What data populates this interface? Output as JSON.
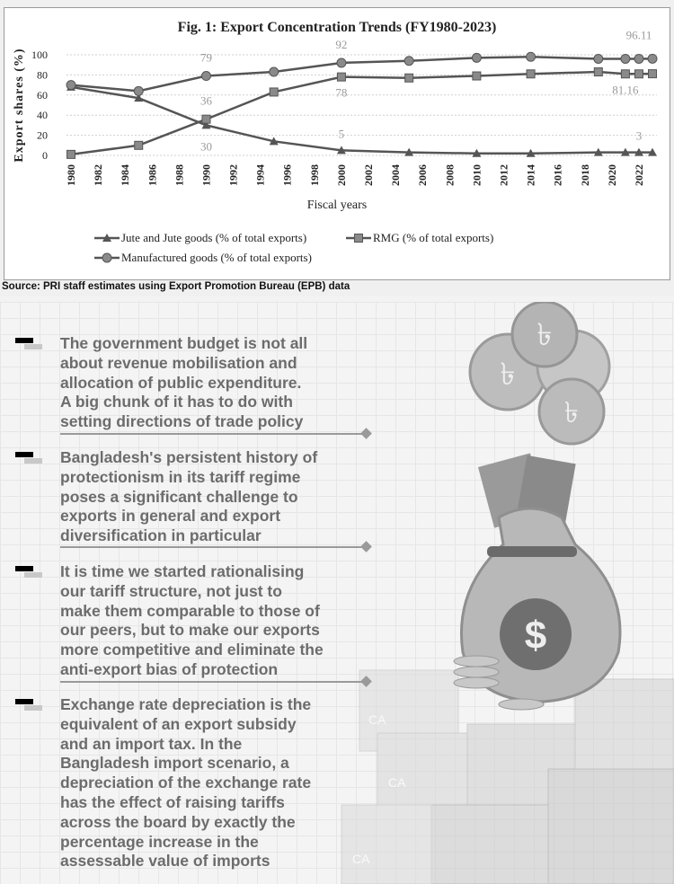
{
  "chart_data": {
    "type": "line",
    "title": "Fig. 1: Export Concentration Trends (FY1980-2023)",
    "xlabel": "Fiscal years",
    "ylabel": "Export shares (%)",
    "ylim": [
      0,
      100
    ],
    "xlim": [
      1980,
      2023
    ],
    "yticks": [
      "0",
      "20",
      "40",
      "60",
      "80",
      "100"
    ],
    "xticks": [
      "1980",
      "1982",
      "1984",
      "1986",
      "1988",
      "1990",
      "1992",
      "1994",
      "1996",
      "1998",
      "2000",
      "2002",
      "2004",
      "2006",
      "2008",
      "2010",
      "2012",
      "2014",
      "2016",
      "2018",
      "2020",
      "2022"
    ],
    "grid": true,
    "legend_position": "bottom",
    "x": [
      1980,
      1985,
      1990,
      1995,
      2000,
      2005,
      2010,
      2014,
      2019,
      2021,
      2022,
      2023
    ],
    "series": [
      {
        "name": "Jute and Jute goods (% of total exports)",
        "marker": "triangle",
        "values": [
          68,
          57,
          30,
          14,
          5,
          3,
          2,
          2,
          3,
          3,
          3,
          3
        ]
      },
      {
        "name": "RMG (% of total exports)",
        "marker": "square",
        "values": [
          1,
          10,
          36,
          63,
          78,
          77,
          79,
          81,
          83,
          81,
          81,
          81.16
        ]
      },
      {
        "name": "Manufactured goods (% of total exports)",
        "marker": "circle",
        "values": [
          70,
          64,
          79,
          83,
          92,
          94,
          97,
          98,
          96,
          96,
          96,
          96.11
        ]
      }
    ],
    "annotations": [
      {
        "series": 2,
        "x": 1990,
        "text": "79"
      },
      {
        "series": 1,
        "x": 1990,
        "text": "36"
      },
      {
        "series": 0,
        "x": 1990,
        "text": "30"
      },
      {
        "series": 2,
        "x": 2000,
        "text": "92"
      },
      {
        "series": 1,
        "x": 2000,
        "text": "78"
      },
      {
        "series": 0,
        "x": 2000,
        "text": "5"
      },
      {
        "series": 2,
        "x": 2022,
        "text": "96.11"
      },
      {
        "series": 1,
        "x": 2021,
        "text": "81.16"
      },
      {
        "series": 0,
        "x": 2022,
        "text": "3"
      }
    ]
  },
  "source": "Source: PRI staff estimates using Export Promotion Bureau (EPB) data",
  "bullets": [
    {
      "text": "The government budget is not all\nabout revenue mobilisation and\nallocation of public expenditure.\nA big chunk of it has to do with\nsetting directions of trade policy"
    },
    {
      "text": "Bangladesh's persistent history of\nprotectionism in its tariff regime\nposes a significant challenge to\nexports in general and export\ndiversification in particular"
    },
    {
      "text": "It is time we started rationalising\nour tariff structure, not just to\nmake them comparable to those of\nour peers, but to make our exports\nmore competitive and eliminate the\nanti-export bias of protection"
    },
    {
      "text": "Exchange rate depreciation is the\nequivalent of an export subsidy\nand an import tax. In the\nBangladesh import scenario, a\ndepreciation of the exchange rate\nhas the effect of raising tariffs\nacross the board by exactly the\npercentage increase in the\nassessable value of imports"
    }
  ],
  "illustration": {
    "taka_symbol": "৳",
    "dollar_symbol": "$",
    "container_marks": [
      "CA",
      "CA",
      "CA"
    ]
  },
  "colors": {
    "line": "#555555",
    "marker": "#8a8a8a",
    "label": "#9a9a9a",
    "text": "#6c6c6c"
  }
}
